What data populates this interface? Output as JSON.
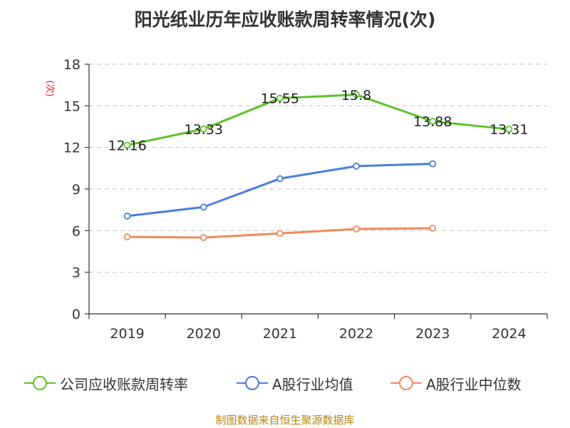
{
  "chart_data": {
    "type": "line",
    "title": "阳光纸业历年应收账款周转率情况(次)",
    "ylabel": "(次)",
    "xlabel": "",
    "categories": [
      "2019",
      "2020",
      "2021",
      "2022",
      "2023",
      "2024"
    ],
    "ylim": [
      0,
      18
    ],
    "yticks": [
      0,
      3,
      6,
      9,
      12,
      15,
      18
    ],
    "grid": true,
    "legend_position": "bottom",
    "series": [
      {
        "name": "公司应收账款周转率",
        "color": "#5ec22a",
        "values": [
          12.16,
          13.33,
          15.55,
          15.8,
          13.88,
          13.31
        ],
        "labels": [
          "12.16",
          "13.33",
          "15.55",
          "15.8",
          "13.88",
          "13.31"
        ]
      },
      {
        "name": "A股行业均值",
        "color": "#4a7fd8",
        "values": [
          7.05,
          7.7,
          9.75,
          10.65,
          10.82,
          null
        ]
      },
      {
        "name": "A股行业中位数",
        "color": "#f08a5d",
        "values": [
          5.55,
          5.5,
          5.8,
          6.12,
          6.17,
          null
        ]
      }
    ]
  },
  "source": "制图数据来自恒生聚源数据库"
}
